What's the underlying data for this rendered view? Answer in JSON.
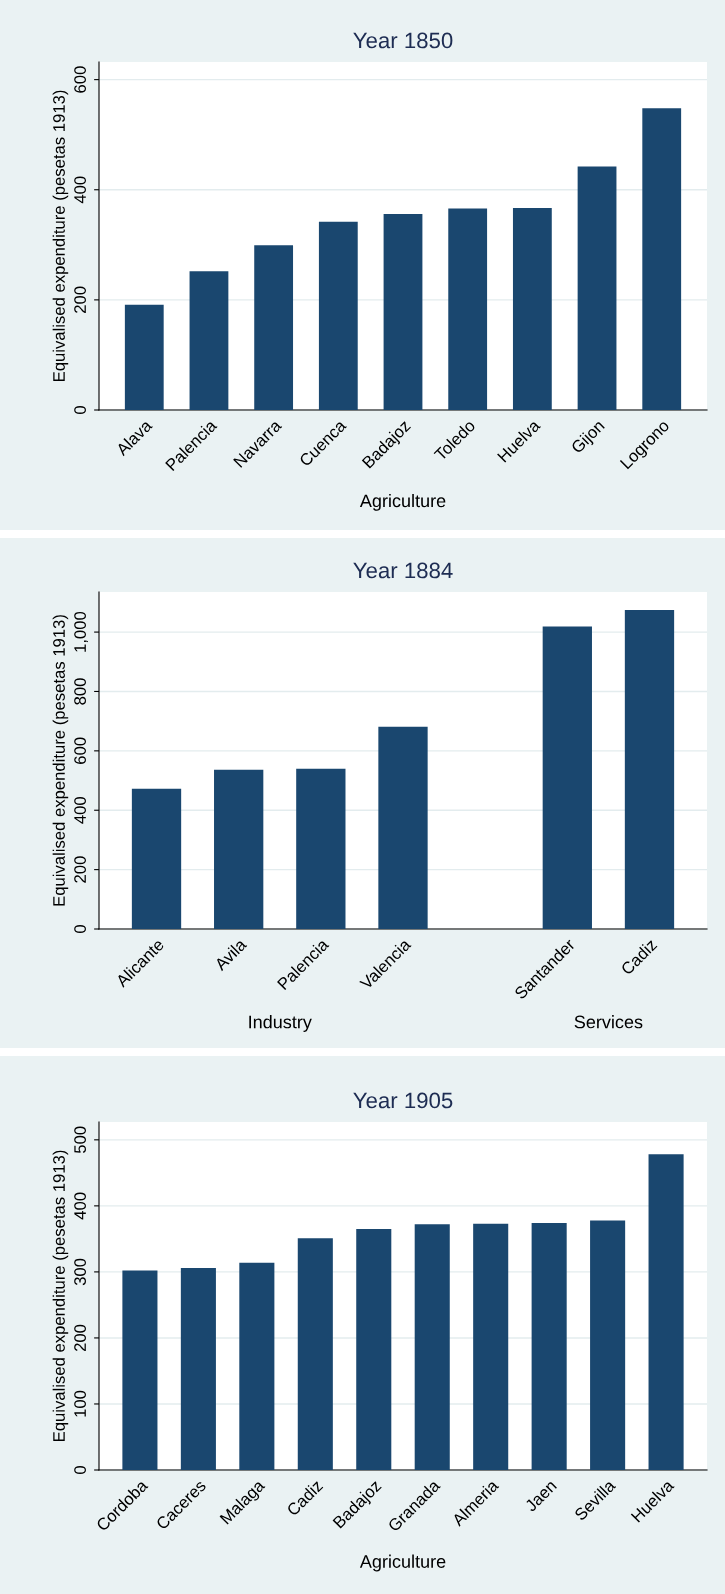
{
  "chart_data": [
    {
      "type": "bar",
      "title": "Year 1850",
      "xlabel": "Agriculture",
      "ylabel": "Equivalised expenditure (pesetas 1913)",
      "categories": [
        "Alava",
        "Palencia",
        "Navarra",
        "Cuenca",
        "Badajoz",
        "Toledo",
        "Huelva",
        "Gijon",
        "Logrono"
      ],
      "values": [
        191,
        252,
        299,
        342,
        356,
        366,
        367,
        442,
        548
      ],
      "color": "#1a476f",
      "ylim": [
        0,
        632
      ],
      "yticks": [
        0,
        200,
        400,
        600
      ],
      "grid": "y",
      "legend": false
    },
    {
      "type": "bar",
      "title": "Year 1884",
      "ylabel": "Equivalised expenditure (pesetas 1913)",
      "categories": [
        "Alicante",
        "Avila",
        "Palencia",
        "Valencia",
        null,
        "Santander",
        "Cadiz"
      ],
      "values": [
        472,
        536,
        540,
        681,
        null,
        1019,
        1074
      ],
      "color": "#1a476f",
      "annotations": [
        "Industry",
        "Services"
      ],
      "ylim": [
        0,
        1135
      ],
      "yticks": [
        0,
        200,
        400,
        600,
        800,
        {
          "value": 1000,
          "label": "1,000"
        }
      ],
      "grid": "y",
      "legend": false
    },
    {
      "type": "bar",
      "title": "Year 1905",
      "xlabel": "Agriculture",
      "ylabel": "Equivalised expenditure (pesetas 1913)",
      "categories": [
        "Cordoba",
        "Caceres",
        "Malaga",
        "Cadiz",
        "Badajoz",
        "Granada",
        "Almeria",
        "Jaen",
        "Sevilla",
        "Huelva"
      ],
      "values": [
        302,
        306,
        314,
        351,
        365,
        372,
        373,
        374,
        378,
        478
      ],
      "color": "#1a476f",
      "ylim": [
        0,
        527
      ],
      "yticks": [
        0,
        100,
        200,
        300,
        400,
        500
      ],
      "grid": "y",
      "legend": false
    }
  ]
}
